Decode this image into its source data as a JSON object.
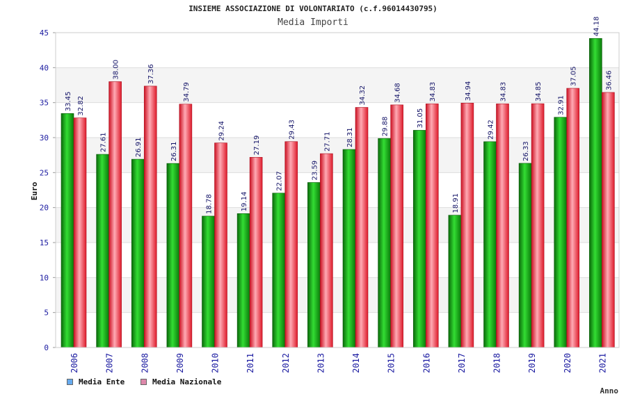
{
  "colors": {
    "ente": "#22bb22",
    "nazionale": "#ee3344",
    "ente_legend": "#66aaee",
    "nazionale_legend": "#dd88aa",
    "axis_text": "#1a1aa0"
  },
  "chart_data": {
    "type": "bar",
    "title": "INSIEME ASSOCIAZIONE DI VOLONTARIATO (c.f.96014430795)",
    "subtitle": "Media Importi",
    "xlabel": "Anno",
    "ylabel": "Euro",
    "ylim": [
      0,
      45
    ],
    "yticks": [
      "0",
      "5",
      "10",
      "15",
      "20",
      "25",
      "30",
      "35",
      "40",
      "45"
    ],
    "categories": [
      "2006",
      "2007",
      "2008",
      "2009",
      "2010",
      "2011",
      "2012",
      "2013",
      "2014",
      "2015",
      "2016",
      "2017",
      "2018",
      "2019",
      "2020",
      "2021"
    ],
    "series": [
      {
        "name": "Media Ente",
        "values": [
          33.45,
          27.61,
          26.91,
          26.31,
          18.78,
          19.14,
          22.07,
          23.59,
          28.31,
          29.88,
          31.05,
          18.91,
          29.42,
          26.33,
          32.91,
          44.18
        ],
        "labels": [
          "33.45",
          "27.61",
          "26.91",
          "26.31",
          "18.78",
          "19.14",
          "22.07",
          "23.59",
          "28.31",
          "29.88",
          "31.05",
          "18.91",
          "29.42",
          "26.33",
          "32.91",
          "44.18"
        ]
      },
      {
        "name": "Media Nazionale",
        "values": [
          32.82,
          38.0,
          37.36,
          34.79,
          29.24,
          27.19,
          29.43,
          27.71,
          34.32,
          34.68,
          34.83,
          34.94,
          34.83,
          34.85,
          37.05,
          36.46
        ],
        "labels": [
          "32.82",
          "38.00",
          "37.36",
          "34.79",
          "29.24",
          "27.19",
          "29.43",
          "27.71",
          "34.32",
          "34.68",
          "34.83",
          "34.94",
          "34.83",
          "34.85",
          "37.05",
          "36.46"
        ]
      }
    ],
    "grid": true,
    "legend": "bottom-left"
  }
}
